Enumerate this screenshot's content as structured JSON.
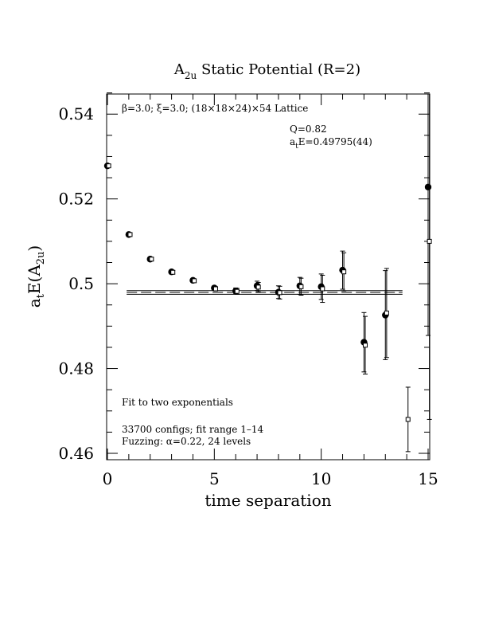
{
  "chart_data": {
    "type": "scatter",
    "title": "A2u Static Potential (R=2)",
    "title_parts": {
      "main": "A",
      "sub": "2u",
      "rest": " Static Potential (R=2)"
    },
    "xlabel": "time separation",
    "ylabel": "atE(A2u)",
    "ylabel_parts": {
      "a": "a",
      "t": "t",
      "e": "E(A",
      "sub": "2u",
      "close": ")"
    },
    "xlim": [
      0,
      15
    ],
    "ylim": [
      0.4585,
      0.545
    ],
    "x_ticks": [
      0,
      5,
      10,
      15
    ],
    "x_tick_labels": [
      "0",
      "5",
      "10",
      "15"
    ],
    "y_ticks": [
      0.46,
      0.48,
      0.5,
      0.52,
      0.54
    ],
    "y_tick_labels": [
      "0.46",
      "0.48",
      "0.5",
      "0.52",
      "0.54"
    ],
    "grid": false,
    "annotations": {
      "lattice": "β=3.0; ξ=3.0; (18×18×24)×54 Lattice",
      "q": "Q=0.82",
      "fit_value_parts": {
        "a": "a",
        "t": "t",
        "rest": "E=0.49795(44)"
      },
      "fit_type": "Fit to two exponentials",
      "configs": "33700 configs; fit range 1–14",
      "fuzzing": "Fuzzing: α=0.22, 24 levels"
    },
    "fit": {
      "value": 0.49795,
      "error": 0.00044,
      "x_range": [
        0.9,
        13.8
      ]
    },
    "series": [
      {
        "marker": "filled-circle",
        "x": [
          0,
          1,
          2,
          3,
          4,
          5,
          6,
          7,
          8,
          9,
          10,
          11,
          12,
          13,
          15
        ],
        "y": [
          0.5278,
          0.5116,
          0.5058,
          0.5028,
          0.5008,
          0.499,
          0.4983,
          0.4995,
          0.498,
          0.4995,
          0.4993,
          0.5032,
          0.4862,
          0.4926,
          0.5228
        ],
        "err": [
          0.0003,
          0.0003,
          0.0003,
          0.0004,
          0.0004,
          0.0005,
          0.0007,
          0.0011,
          0.0015,
          0.002,
          0.003,
          0.0045,
          0.007,
          0.0105,
          0.035
        ]
      },
      {
        "marker": "open-square",
        "x": [
          0.06,
          1.06,
          2.06,
          3.06,
          4.06,
          5.06,
          6.06,
          7.06,
          8.06,
          9.06,
          10.06,
          11.06,
          12.06,
          13.06,
          14.06,
          15.06
        ],
        "y": [
          0.5278,
          0.5116,
          0.5058,
          0.5027,
          0.5007,
          0.4988,
          0.4982,
          0.4992,
          0.4979,
          0.4993,
          0.4988,
          0.5028,
          0.4855,
          0.4931,
          0.468,
          0.51
        ],
        "err": [
          0.0003,
          0.0003,
          0.0003,
          0.0004,
          0.0004,
          0.0005,
          0.0007,
          0.0011,
          0.0015,
          0.002,
          0.0032,
          0.0045,
          0.0068,
          0.0105,
          0.0076,
          0.042
        ]
      }
    ]
  }
}
